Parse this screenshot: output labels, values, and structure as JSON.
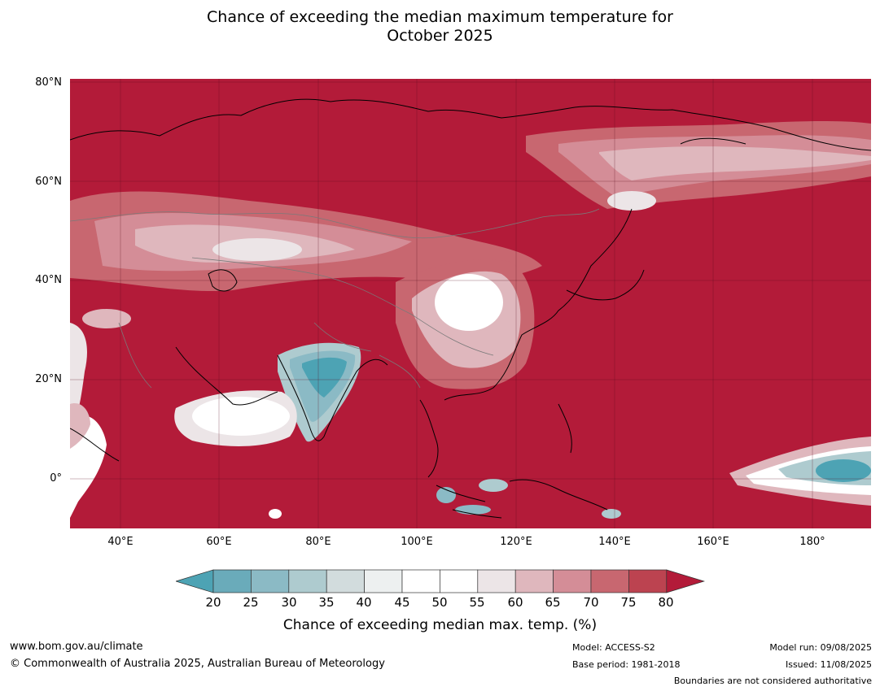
{
  "title_line1": "Chance of exceeding the median maximum temperature for",
  "title_line2": "October 2025",
  "map": {
    "lat_labels": [
      "80°N",
      "60°N",
      "40°N",
      "20°N",
      "0°"
    ],
    "lon_labels": [
      "40°E",
      "60°E",
      "80°E",
      "100°E",
      "120°E",
      "140°E",
      "160°E",
      "180°"
    ],
    "background_color": "#b31b39"
  },
  "colorbar": {
    "ticks": [
      "20",
      "25",
      "30",
      "35",
      "40",
      "45",
      "50",
      "55",
      "60",
      "65",
      "70",
      "75",
      "80"
    ],
    "colors": [
      "#4da3b4",
      "#6aabba",
      "#8bbac5",
      "#aecbcf",
      "#d2dcdd",
      "#edf0f0",
      "#ffffff",
      "#ffffff",
      "#ece5e7",
      "#dfb7bd",
      "#d48d97",
      "#c86770",
      "#bc4350",
      "#b31b39"
    ],
    "label": "Chance of exceeding median max. temp. (%)"
  },
  "footer": {
    "website": "www.bom.gov.au/climate",
    "copyright": "© Commonwealth of Australia 2025, Australian Bureau of Meteorology",
    "model": "Model: ACCESS-S2",
    "base_period": "Base period: 1981-2018",
    "model_run": "Model run: 09/08/2025",
    "issued": "Issued: 11/08/2025",
    "disclaimer": "Boundaries are not considered authoritative"
  }
}
